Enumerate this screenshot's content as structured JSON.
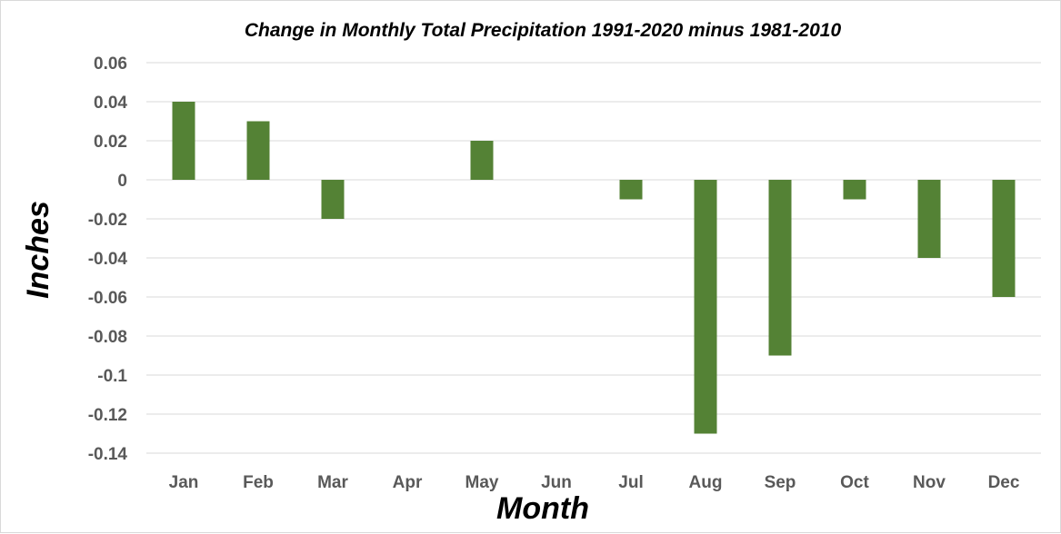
{
  "chart_data": {
    "type": "bar",
    "title": "Change in Monthly Total Precipitation 1991-2020 minus 1981-2010",
    "xlabel": "Month",
    "ylabel": "Inches",
    "categories": [
      "Jan",
      "Feb",
      "Mar",
      "Apr",
      "May",
      "Jun",
      "Jul",
      "Aug",
      "Sep",
      "Oct",
      "Nov",
      "Dec"
    ],
    "values": [
      0.04,
      0.03,
      -0.02,
      0,
      0.02,
      0,
      -0.01,
      -0.13,
      -0.09,
      -0.01,
      -0.04,
      -0.06
    ],
    "ylim": [
      -0.14,
      0.06
    ],
    "yticks": [
      0.06,
      0.04,
      0.02,
      0,
      -0.02,
      -0.04,
      -0.06,
      -0.08,
      -0.1,
      -0.12,
      -0.14
    ],
    "ytick_labels": [
      "0.06",
      "0.04",
      "0.02",
      "0",
      "-0.02",
      "-0.04",
      "-0.06",
      "-0.08",
      "-0.1",
      "-0.12",
      "-0.14"
    ],
    "grid": true,
    "legend": "none",
    "bar_color": "#548235"
  }
}
